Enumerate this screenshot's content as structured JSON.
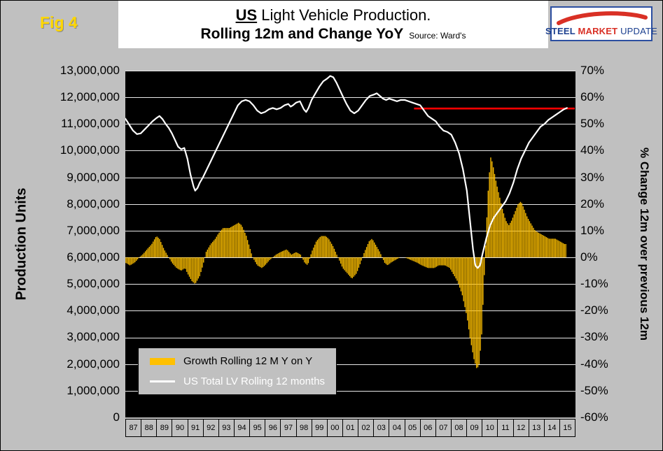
{
  "figure_label": "Fig 4",
  "title": {
    "line1_bold": "US",
    "line1_rest": " Light Vehicle Production.",
    "line2": "Rolling 12m and Change YoY",
    "source": "Source: Ward's"
  },
  "logo": {
    "steel": "STEEL",
    "market": "MARKET",
    "update": "UPDATE"
  },
  "left_axis": {
    "title": "Production Units",
    "ticks": [
      "13,000,000",
      "12,000,000",
      "11,000,000",
      "10,000,000",
      "9,000,000",
      "8,000,000",
      "7,000,000",
      "6,000,000",
      "5,000,000",
      "4,000,000",
      "3,000,000",
      "2,000,000",
      "1,000,000",
      "0"
    ]
  },
  "right_axis": {
    "title": "% Change 12m over previous 12m",
    "ticks": [
      "70%",
      "60%",
      "50%",
      "40%",
      "30%",
      "20%",
      "10%",
      "0%",
      "-10%",
      "-20%",
      "-30%",
      "-40%",
      "-50%",
      "-60%"
    ]
  },
  "x_axis": {
    "labels": [
      "87",
      "88",
      "89",
      "90",
      "91",
      "92",
      "93",
      "94",
      "95",
      "96",
      "97",
      "98",
      "99",
      "00",
      "01",
      "02",
      "03",
      "04",
      "05",
      "06",
      "07",
      "08",
      "09",
      "10",
      "11",
      "12",
      "13",
      "14",
      "15"
    ]
  },
  "legend": {
    "items": [
      {
        "label": "Growth Rolling 12 M Y on Y",
        "swatch_color": "#FFC000",
        "swatch_type": "bar",
        "text_color": "#000000"
      },
      {
        "label": "US Total LV Rolling 12 months",
        "swatch_color": "#FFFFFF",
        "swatch_type": "line",
        "text_color": "#FFFFFF"
      }
    ]
  },
  "colors": {
    "page_bg": "#C0C0C0",
    "plot_bg": "#000000",
    "grid": "#E8E8E8",
    "bar": "#FFC000",
    "line": "#FFFFFF",
    "reference": "#FF0000",
    "figure_label": "#FFD700"
  },
  "chart_data": {
    "type": "combo bar + line",
    "title": "US Light Vehicle Production. Rolling 12m and Change YoY",
    "source": "Ward's",
    "x_domain": [
      1987,
      2016
    ],
    "left_ylim_million_units": [
      0,
      13
    ],
    "right_ylim_percent": [
      -60,
      70
    ],
    "grid": "horizontal only, white on black",
    "legend_position": "inside bottom-left",
    "series": [
      {
        "name": "Growth Rolling 12 M Y on Y",
        "type": "bar",
        "axis": "right",
        "unit": "percent YoY",
        "color": "#FFC000",
        "bar_resolution_months": 1,
        "points": [
          [
            1987.0,
            -2
          ],
          [
            1987.3,
            -3
          ],
          [
            1987.6,
            -2
          ],
          [
            1987.9,
            0
          ],
          [
            1988.1,
            1
          ],
          [
            1988.4,
            3
          ],
          [
            1988.7,
            5
          ],
          [
            1989.0,
            8
          ],
          [
            1989.2,
            7
          ],
          [
            1989.5,
            3
          ],
          [
            1989.8,
            0
          ],
          [
            1990.0,
            -2
          ],
          [
            1990.3,
            -4
          ],
          [
            1990.6,
            -5
          ],
          [
            1990.85,
            -4
          ],
          [
            1991.0,
            -6
          ],
          [
            1991.3,
            -9
          ],
          [
            1991.5,
            -10
          ],
          [
            1991.8,
            -7
          ],
          [
            1992.0,
            -3
          ],
          [
            1992.2,
            2
          ],
          [
            1992.5,
            5
          ],
          [
            1992.8,
            7
          ],
          [
            1993.0,
            9
          ],
          [
            1993.3,
            11
          ],
          [
            1993.7,
            11
          ],
          [
            1994.0,
            12
          ],
          [
            1994.3,
            13
          ],
          [
            1994.5,
            12
          ],
          [
            1994.8,
            8
          ],
          [
            1995.0,
            4
          ],
          [
            1995.2,
            0
          ],
          [
            1995.5,
            -3
          ],
          [
            1995.8,
            -4
          ],
          [
            1996.0,
            -3
          ],
          [
            1996.3,
            -1
          ],
          [
            1996.7,
            1
          ],
          [
            1997.0,
            2
          ],
          [
            1997.4,
            3
          ],
          [
            1997.7,
            1
          ],
          [
            1998.0,
            2
          ],
          [
            1998.3,
            1
          ],
          [
            1998.55,
            -2
          ],
          [
            1998.75,
            -3
          ],
          [
            1999.0,
            2
          ],
          [
            1999.3,
            6
          ],
          [
            1999.6,
            8
          ],
          [
            1999.9,
            8
          ],
          [
            2000.1,
            7
          ],
          [
            2000.4,
            4
          ],
          [
            2000.7,
            0
          ],
          [
            2001.0,
            -4
          ],
          [
            2001.3,
            -6
          ],
          [
            2001.6,
            -8
          ],
          [
            2001.9,
            -6
          ],
          [
            2002.1,
            -3
          ],
          [
            2002.4,
            2
          ],
          [
            2002.7,
            6
          ],
          [
            2002.9,
            7
          ],
          [
            2003.1,
            5
          ],
          [
            2003.4,
            2
          ],
          [
            2003.7,
            -2
          ],
          [
            2003.9,
            -3
          ],
          [
            2004.1,
            -2
          ],
          [
            2004.4,
            -1
          ],
          [
            2004.7,
            0
          ],
          [
            2005.0,
            0
          ],
          [
            2005.4,
            -1
          ],
          [
            2005.8,
            -2
          ],
          [
            2006.1,
            -3
          ],
          [
            2006.5,
            -4
          ],
          [
            2006.9,
            -4
          ],
          [
            2007.2,
            -3
          ],
          [
            2007.6,
            -3
          ],
          [
            2007.9,
            -4
          ],
          [
            2008.1,
            -6
          ],
          [
            2008.4,
            -9
          ],
          [
            2008.7,
            -14
          ],
          [
            2009.0,
            -22
          ],
          [
            2009.2,
            -30
          ],
          [
            2009.45,
            -38
          ],
          [
            2009.65,
            -42
          ],
          [
            2009.8,
            -40
          ],
          [
            2009.95,
            -30
          ],
          [
            2010.1,
            -10
          ],
          [
            2010.25,
            10
          ],
          [
            2010.4,
            28
          ],
          [
            2010.55,
            38
          ],
          [
            2010.7,
            34
          ],
          [
            2010.9,
            28
          ],
          [
            2011.1,
            23
          ],
          [
            2011.3,
            18
          ],
          [
            2011.5,
            14
          ],
          [
            2011.7,
            12
          ],
          [
            2011.9,
            14
          ],
          [
            2012.1,
            17
          ],
          [
            2012.3,
            20
          ],
          [
            2012.5,
            21
          ],
          [
            2012.7,
            18
          ],
          [
            2012.9,
            15
          ],
          [
            2013.1,
            13
          ],
          [
            2013.4,
            10
          ],
          [
            2013.7,
            9
          ],
          [
            2014.0,
            8
          ],
          [
            2014.3,
            7
          ],
          [
            2014.7,
            7
          ],
          [
            2015.0,
            6
          ],
          [
            2015.3,
            5
          ],
          [
            2015.45,
            5
          ]
        ]
      },
      {
        "name": "US Total LV Rolling 12 months",
        "type": "line",
        "axis": "left",
        "unit": "million units",
        "color": "#FFFFFF",
        "points": [
          [
            1987.0,
            11.2
          ],
          [
            1987.17,
            11.05
          ],
          [
            1987.33,
            10.9
          ],
          [
            1987.5,
            10.75
          ],
          [
            1987.75,
            10.62
          ],
          [
            1988.0,
            10.65
          ],
          [
            1988.25,
            10.8
          ],
          [
            1988.5,
            10.95
          ],
          [
            1988.75,
            11.1
          ],
          [
            1989.0,
            11.22
          ],
          [
            1989.2,
            11.3
          ],
          [
            1989.4,
            11.18
          ],
          [
            1989.6,
            11.0
          ],
          [
            1989.8,
            10.85
          ],
          [
            1990.0,
            10.65
          ],
          [
            1990.2,
            10.4
          ],
          [
            1990.4,
            10.15
          ],
          [
            1990.6,
            10.05
          ],
          [
            1990.8,
            10.1
          ],
          [
            1991.0,
            9.7
          ],
          [
            1991.2,
            9.1
          ],
          [
            1991.4,
            8.65
          ],
          [
            1991.5,
            8.5
          ],
          [
            1991.65,
            8.6
          ],
          [
            1991.8,
            8.8
          ],
          [
            1992.0,
            9.0
          ],
          [
            1992.25,
            9.3
          ],
          [
            1992.5,
            9.6
          ],
          [
            1992.75,
            9.9
          ],
          [
            1993.0,
            10.2
          ],
          [
            1993.25,
            10.5
          ],
          [
            1993.5,
            10.8
          ],
          [
            1993.75,
            11.1
          ],
          [
            1994.0,
            11.4
          ],
          [
            1994.25,
            11.7
          ],
          [
            1994.5,
            11.85
          ],
          [
            1994.75,
            11.9
          ],
          [
            1995.0,
            11.85
          ],
          [
            1995.25,
            11.7
          ],
          [
            1995.5,
            11.5
          ],
          [
            1995.75,
            11.4
          ],
          [
            1996.0,
            11.45
          ],
          [
            1996.25,
            11.55
          ],
          [
            1996.5,
            11.6
          ],
          [
            1996.75,
            11.55
          ],
          [
            1997.0,
            11.6
          ],
          [
            1997.25,
            11.7
          ],
          [
            1997.5,
            11.75
          ],
          [
            1997.65,
            11.65
          ],
          [
            1997.8,
            11.7
          ],
          [
            1998.0,
            11.8
          ],
          [
            1998.25,
            11.85
          ],
          [
            1998.5,
            11.55
          ],
          [
            1998.65,
            11.45
          ],
          [
            1998.8,
            11.6
          ],
          [
            1999.0,
            11.9
          ],
          [
            1999.25,
            12.15
          ],
          [
            1999.5,
            12.4
          ],
          [
            1999.75,
            12.6
          ],
          [
            2000.0,
            12.7
          ],
          [
            2000.2,
            12.8
          ],
          [
            2000.4,
            12.75
          ],
          [
            2000.6,
            12.55
          ],
          [
            2000.8,
            12.3
          ],
          [
            2001.0,
            12.05
          ],
          [
            2001.25,
            11.75
          ],
          [
            2001.5,
            11.5
          ],
          [
            2001.75,
            11.4
          ],
          [
            2002.0,
            11.5
          ],
          [
            2002.25,
            11.7
          ],
          [
            2002.5,
            11.9
          ],
          [
            2002.75,
            12.05
          ],
          [
            2003.0,
            12.1
          ],
          [
            2003.2,
            12.15
          ],
          [
            2003.4,
            12.05
          ],
          [
            2003.6,
            11.95
          ],
          [
            2003.8,
            11.9
          ],
          [
            2004.0,
            11.95
          ],
          [
            2004.25,
            11.9
          ],
          [
            2004.5,
            11.85
          ],
          [
            2004.75,
            11.9
          ],
          [
            2005.0,
            11.9
          ],
          [
            2005.25,
            11.85
          ],
          [
            2005.5,
            11.8
          ],
          [
            2005.75,
            11.75
          ],
          [
            2006.0,
            11.7
          ],
          [
            2006.25,
            11.5
          ],
          [
            2006.5,
            11.3
          ],
          [
            2006.75,
            11.2
          ],
          [
            2007.0,
            11.1
          ],
          [
            2007.25,
            10.9
          ],
          [
            2007.5,
            10.75
          ],
          [
            2007.75,
            10.7
          ],
          [
            2008.0,
            10.6
          ],
          [
            2008.25,
            10.3
          ],
          [
            2008.5,
            9.9
          ],
          [
            2008.75,
            9.3
          ],
          [
            2009.0,
            8.5
          ],
          [
            2009.2,
            7.4
          ],
          [
            2009.4,
            6.3
          ],
          [
            2009.55,
            5.7
          ],
          [
            2009.7,
            5.6
          ],
          [
            2009.85,
            5.7
          ],
          [
            2010.0,
            6.1
          ],
          [
            2010.25,
            6.7
          ],
          [
            2010.5,
            7.2
          ],
          [
            2010.75,
            7.5
          ],
          [
            2011.0,
            7.7
          ],
          [
            2011.25,
            7.9
          ],
          [
            2011.5,
            8.1
          ],
          [
            2011.75,
            8.4
          ],
          [
            2012.0,
            8.8
          ],
          [
            2012.25,
            9.3
          ],
          [
            2012.5,
            9.7
          ],
          [
            2012.75,
            10.0
          ],
          [
            2013.0,
            10.3
          ],
          [
            2013.25,
            10.5
          ],
          [
            2013.5,
            10.7
          ],
          [
            2013.75,
            10.9
          ],
          [
            2014.0,
            11.0
          ],
          [
            2014.25,
            11.15
          ],
          [
            2014.5,
            11.25
          ],
          [
            2014.75,
            11.35
          ],
          [
            2015.0,
            11.45
          ],
          [
            2015.25,
            11.55
          ],
          [
            2015.45,
            11.6
          ]
        ]
      },
      {
        "name": "Reference level (current rolling 12m vs 2005)",
        "type": "reference-line",
        "axis": "left",
        "unit": "million units",
        "color": "#FF0000",
        "points": [
          [
            2005.6,
            11.58
          ],
          [
            2015.95,
            11.58
          ]
        ]
      }
    ]
  }
}
